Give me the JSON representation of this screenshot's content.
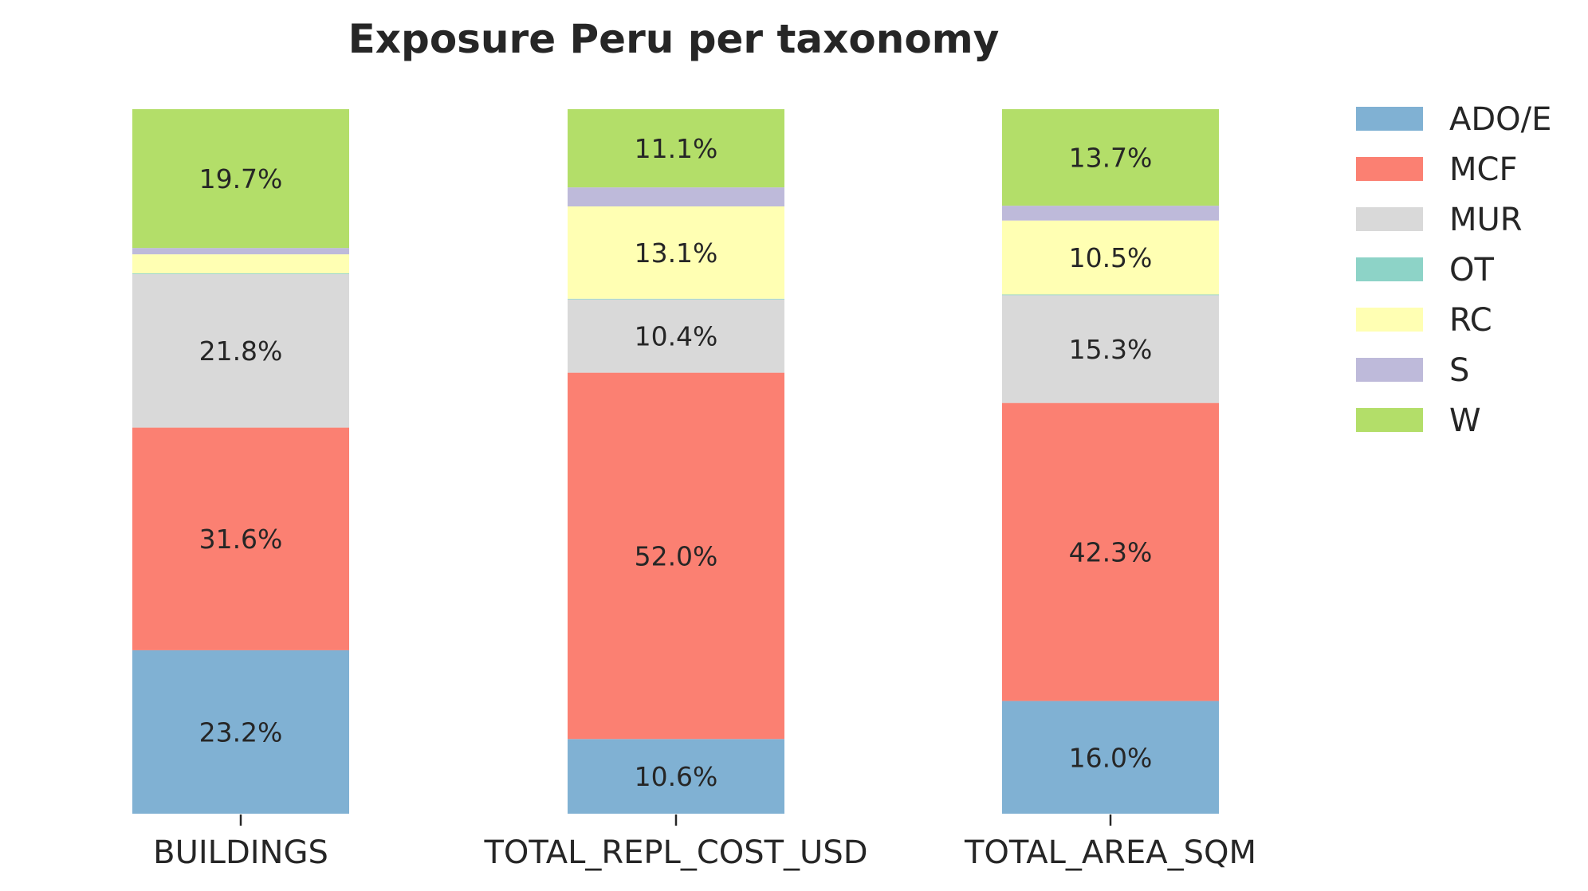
{
  "chart_data": {
    "type": "bar",
    "stacked": true,
    "title": "Exposure Peru per taxonomy",
    "xlabel": "",
    "ylabel": "",
    "ylim": [
      0,
      100
    ],
    "grid": false,
    "legend_position": "top-right, outside plot",
    "categories": [
      "BUILDINGS",
      "TOTAL_REPL_COST_USD",
      "TOTAL_AREA_SQM"
    ],
    "series": [
      {
        "name": "ADO/E",
        "color": "#80b1d3",
        "values": [
          23.2,
          10.6,
          16.0
        ],
        "labels": [
          "23.2%",
          "10.6%",
          "16.0%"
        ]
      },
      {
        "name": "MCF",
        "color": "#fb8072",
        "values": [
          31.6,
          52.0,
          42.3
        ],
        "labels": [
          "31.6%",
          "52.0%",
          "42.3%"
        ]
      },
      {
        "name": "MUR",
        "color": "#d9d9d9",
        "values": [
          21.8,
          10.4,
          15.3
        ],
        "labels": [
          "21.8%",
          "10.4%",
          "15.3%"
        ]
      },
      {
        "name": "OT",
        "color": "#8dd3c7",
        "values": [
          0.1,
          0.1,
          0.1
        ],
        "labels": [
          "",
          "",
          ""
        ]
      },
      {
        "name": "RC",
        "color": "#ffffb3",
        "values": [
          2.7,
          13.1,
          10.5
        ],
        "labels": [
          "",
          "13.1%",
          "10.5%"
        ]
      },
      {
        "name": "S",
        "color": "#bebada",
        "values": [
          0.9,
          2.7,
          2.1
        ],
        "labels": [
          "",
          "",
          ""
        ]
      },
      {
        "name": "W",
        "color": "#b3de69",
        "values": [
          19.7,
          11.1,
          13.7
        ],
        "labels": [
          "19.7%",
          "11.1%",
          "13.7%"
        ]
      }
    ]
  }
}
